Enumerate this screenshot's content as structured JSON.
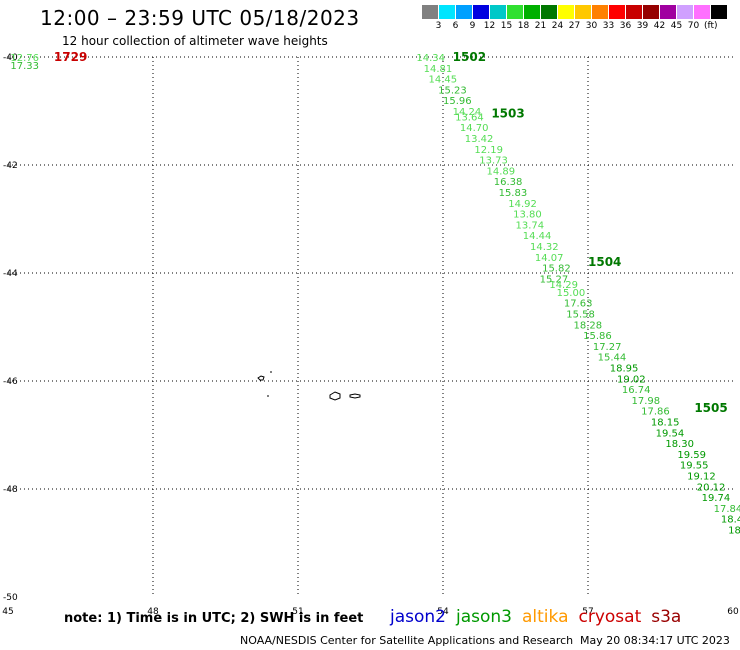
{
  "header": {
    "title": "12:00 – 23:59 UTC 05/18/2023",
    "subtitle": "12 hour collection of altimeter wave heights"
  },
  "legend": {
    "colors": [
      "#808080",
      "#00e5ff",
      "#00a0ff",
      "#0000e0",
      "#00c8c8",
      "#30e030",
      "#00b000",
      "#007800",
      "#ffff00",
      "#ffc800",
      "#ff8000",
      "#ff0000",
      "#c80000",
      "#960000",
      "#a000a0",
      "#d0a0ff",
      "#ff70ff",
      "#000000"
    ],
    "labels": [
      "3",
      "6",
      "9",
      "12",
      "15",
      "18",
      "21",
      "24",
      "27",
      "30",
      "33",
      "36",
      "39",
      "42",
      "45",
      "70"
    ],
    "units": "(ft)"
  },
  "axes": {
    "lon_ticks": [
      "45",
      "48",
      "51",
      "54",
      "57",
      "60"
    ],
    "lat_ticks": [
      "-40",
      "-42",
      "-44",
      "-46",
      "-48",
      "-50"
    ]
  },
  "track_labels": [
    {
      "text": "1502",
      "lon": 54.2,
      "lat": -40.0,
      "color": "#007800"
    },
    {
      "text": "1503",
      "lon": 55.0,
      "lat": -41.05,
      "color": "#007800"
    },
    {
      "text": "1504",
      "lon": 57.0,
      "lat": -43.8,
      "color": "#007800"
    },
    {
      "text": "1505",
      "lon": 59.2,
      "lat": -46.5,
      "color": "#007800"
    },
    {
      "text": "1729",
      "lon": 45.95,
      "lat": -40.0,
      "color": "#c80000"
    }
  ],
  "readings": [
    {
      "v": "14.34",
      "lon": 53.45,
      "lat": -40.0,
      "c": "#55dd55"
    },
    {
      "v": "14.81",
      "lon": 53.6,
      "lat": -40.2,
      "c": "#55dd55"
    },
    {
      "v": "14.45",
      "lon": 53.7,
      "lat": -40.4,
      "c": "#55dd55"
    },
    {
      "v": "15.23",
      "lon": 53.9,
      "lat": -40.6,
      "c": "#33bb33"
    },
    {
      "v": "15.96",
      "lon": 54.0,
      "lat": -40.8,
      "c": "#33bb33"
    },
    {
      "v": "14.24",
      "lon": 54.2,
      "lat": -41.0,
      "c": "#55dd55"
    },
    {
      "v": "13.64",
      "lon": 54.25,
      "lat": -41.1,
      "c": "#55dd55"
    },
    {
      "v": "14.70",
      "lon": 54.35,
      "lat": -41.3,
      "c": "#55dd55"
    },
    {
      "v": "13.42",
      "lon": 54.45,
      "lat": -41.5,
      "c": "#55dd55"
    },
    {
      "v": "12.19",
      "lon": 54.65,
      "lat": -41.7,
      "c": "#55dd55"
    },
    {
      "v": "13.73",
      "lon": 54.75,
      "lat": -41.9,
      "c": "#55dd55"
    },
    {
      "v": "14.89",
      "lon": 54.9,
      "lat": -42.1,
      "c": "#55dd55"
    },
    {
      "v": "16.38",
      "lon": 55.05,
      "lat": -42.3,
      "c": "#33bb33"
    },
    {
      "v": "15.83",
      "lon": 55.15,
      "lat": -42.5,
      "c": "#33bb33"
    },
    {
      "v": "14.92",
      "lon": 55.35,
      "lat": -42.7,
      "c": "#55dd55"
    },
    {
      "v": "13.80",
      "lon": 55.45,
      "lat": -42.9,
      "c": "#55dd55"
    },
    {
      "v": "13.74",
      "lon": 55.5,
      "lat": -43.1,
      "c": "#55dd55"
    },
    {
      "v": "14.44",
      "lon": 55.65,
      "lat": -43.3,
      "c": "#55dd55"
    },
    {
      "v": "14.32",
      "lon": 55.8,
      "lat": -43.5,
      "c": "#55dd55"
    },
    {
      "v": "14.07",
      "lon": 55.9,
      "lat": -43.7,
      "c": "#55dd55"
    },
    {
      "v": "15.82",
      "lon": 56.05,
      "lat": -43.9,
      "c": "#33bb33"
    },
    {
      "v": "15.27",
      "lon": 56.0,
      "lat": -44.1,
      "c": "#33bb33"
    },
    {
      "v": "14.29",
      "lon": 56.2,
      "lat": -44.2,
      "c": "#55dd55"
    },
    {
      "v": "15.00",
      "lon": 56.35,
      "lat": -44.35,
      "c": "#55dd55"
    },
    {
      "v": "17.63",
      "lon": 56.5,
      "lat": -44.55,
      "c": "#33bb33"
    },
    {
      "v": "15.58",
      "lon": 56.55,
      "lat": -44.75,
      "c": "#33bb33"
    },
    {
      "v": "18.28",
      "lon": 56.7,
      "lat": -44.95,
      "c": "#33bb33"
    },
    {
      "v": "15.86",
      "lon": 56.9,
      "lat": -45.15,
      "c": "#33bb33"
    },
    {
      "v": "17.27",
      "lon": 57.1,
      "lat": -45.35,
      "c": "#33bb33"
    },
    {
      "v": "15.44",
      "lon": 57.2,
      "lat": -45.55,
      "c": "#33bb33"
    },
    {
      "v": "18.95",
      "lon": 57.45,
      "lat": -45.75,
      "c": "#009900"
    },
    {
      "v": "19.02",
      "lon": 57.6,
      "lat": -45.95,
      "c": "#009900"
    },
    {
      "v": "16.74",
      "lon": 57.7,
      "lat": -46.15,
      "c": "#33bb33"
    },
    {
      "v": "17.98",
      "lon": 57.9,
      "lat": -46.35,
      "c": "#33bb33"
    },
    {
      "v": "17.86",
      "lon": 58.1,
      "lat": -46.55,
      "c": "#33bb33"
    },
    {
      "v": "18.15",
      "lon": 58.3,
      "lat": -46.75,
      "c": "#009900"
    },
    {
      "v": "19.54",
      "lon": 58.4,
      "lat": -46.95,
      "c": "#009900"
    },
    {
      "v": "18.30",
      "lon": 58.6,
      "lat": -47.15,
      "c": "#009900"
    },
    {
      "v": "19.59",
      "lon": 58.85,
      "lat": -47.35,
      "c": "#009900"
    },
    {
      "v": "19.55",
      "lon": 58.9,
      "lat": -47.55,
      "c": "#009900"
    },
    {
      "v": "19.12",
      "lon": 59.05,
      "lat": -47.75,
      "c": "#009900"
    },
    {
      "v": "20.12",
      "lon": 59.25,
      "lat": -47.95,
      "c": "#009900"
    },
    {
      "v": "19.74",
      "lon": 59.35,
      "lat": -48.15,
      "c": "#009900"
    },
    {
      "v": "17.84",
      "lon": 59.6,
      "lat": -48.35,
      "c": "#33bb33"
    },
    {
      "v": "18.4",
      "lon": 59.75,
      "lat": -48.55,
      "c": "#009900"
    },
    {
      "v": "18",
      "lon": 59.9,
      "lat": -48.75,
      "c": "#009900"
    },
    {
      "v": "12.76",
      "lon": 45.05,
      "lat": -40.0,
      "c": "#55dd55"
    },
    {
      "v": "17.33",
      "lon": 45.05,
      "lat": -40.15,
      "c": "#33bb33"
    }
  ],
  "footer": {
    "note": "note: 1) Time is in UTC; 2) SWH is in feet",
    "satellites": [
      {
        "name": "jason2",
        "color": "#0000cc"
      },
      {
        "name": "jason3",
        "color": "#009900"
      },
      {
        "name": "altika",
        "color": "#ff9900"
      },
      {
        "name": "cryosat",
        "color": "#cc0000"
      },
      {
        "name": "s3a",
        "color": "#990000"
      }
    ],
    "credit": "NOAA/NESDIS Center for Satellite Applications and Research",
    "timestamp": "May 20 08:34:17 UTC 2023"
  }
}
